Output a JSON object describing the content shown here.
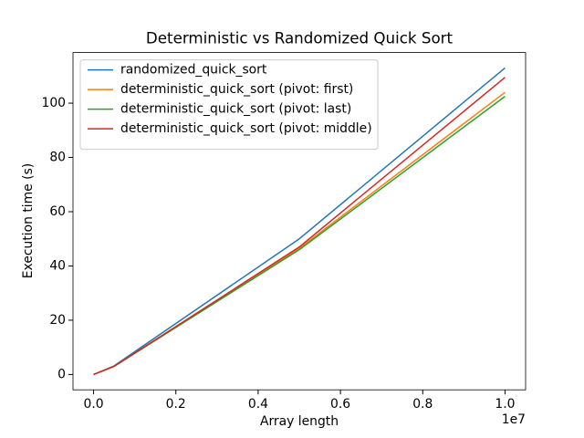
{
  "chart_data": {
    "type": "line",
    "title": "Deterministic vs Randomized Quick Sort",
    "x_label": "Array length",
    "y_label": "Execution time (s)",
    "x_offset_label": "1e7",
    "x": [
      0,
      500000,
      5000000,
      10000000
    ],
    "series": [
      {
        "name": "randomized_quick_sort",
        "color": "#1f77b4",
        "values": [
          0,
          3.2,
          50,
          113
        ]
      },
      {
        "name": "deterministic_quick_sort (pivot: first)",
        "color": "#ff7f0e",
        "values": [
          0,
          3,
          46.5,
          104
        ]
      },
      {
        "name": "deterministic_quick_sort (pivot: last)",
        "color": "#2ca02c",
        "values": [
          0,
          3,
          46,
          102.5
        ]
      },
      {
        "name": "deterministic_quick_sort (pivot: middle)",
        "color": "#d62728",
        "values": [
          0,
          3,
          47,
          109.5
        ]
      }
    ],
    "xlim": [
      -500000,
      10500000
    ],
    "ylim": [
      -5.65,
      118.65
    ],
    "xticks": [
      {
        "value": 0,
        "label": "0.0"
      },
      {
        "value": 2000000,
        "label": "0.2"
      },
      {
        "value": 4000000,
        "label": "0.4"
      },
      {
        "value": 6000000,
        "label": "0.6"
      },
      {
        "value": 8000000,
        "label": "0.8"
      },
      {
        "value": 10000000,
        "label": "1.0"
      }
    ],
    "yticks": [
      0,
      20,
      40,
      60,
      80,
      100
    ],
    "legend": "upper left",
    "grid": false
  }
}
